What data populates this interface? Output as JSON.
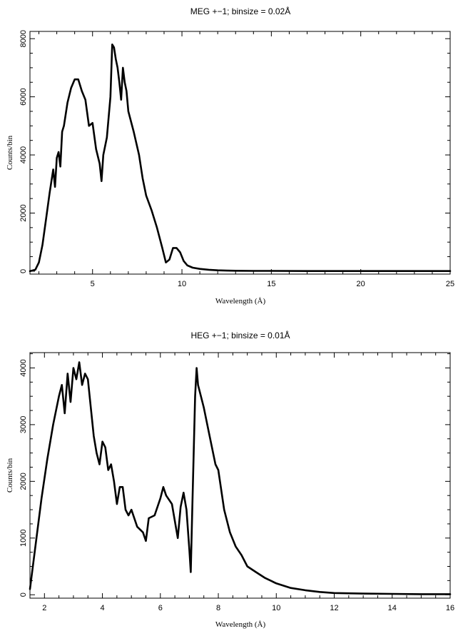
{
  "chart_data": [
    {
      "type": "line",
      "title": "MEG +−1; binsize = 0.02Å",
      "xlabel": "Wavelength (Å)",
      "ylabel": "Counts/bin",
      "xlim": [
        1.5,
        25
      ],
      "ylim": [
        -100,
        8250
      ],
      "x_major_ticks": [
        5,
        10,
        15,
        20,
        25
      ],
      "y_major_ticks": [
        0,
        2000,
        4000,
        6000,
        8000
      ],
      "x_tick_labels": [
        "5",
        "10",
        "15",
        "20",
        "25"
      ],
      "y_tick_labels": [
        "0",
        "2000",
        "4000",
        "6000",
        "8000"
      ],
      "x_minor_step": 1,
      "y_minor_step": 500,
      "grid": false,
      "series": [
        {
          "x": [
            1.5,
            1.8,
            2.0,
            2.2,
            2.4,
            2.6,
            2.8,
            2.9,
            3.0,
            3.1,
            3.2,
            3.3,
            3.4,
            3.6,
            3.8,
            4.0,
            4.2,
            4.4,
            4.6,
            4.8,
            5.0,
            5.2,
            5.4,
            5.5,
            5.6,
            5.8,
            6.0,
            6.1,
            6.2,
            6.3,
            6.4,
            6.5,
            6.6,
            6.7,
            6.8,
            6.9,
            7.0,
            7.3,
            7.6,
            7.8,
            8.0,
            8.3,
            8.6,
            8.9,
            9.1,
            9.3,
            9.5,
            9.7,
            9.9,
            10.1,
            10.3,
            10.6,
            11.0,
            11.5,
            12.0,
            12.5,
            13.0,
            14.0,
            15.0,
            17.0,
            20.0,
            22.0,
            25.0
          ],
          "y": [
            0,
            50,
            300,
            900,
            1800,
            2700,
            3500,
            2900,
            3900,
            4100,
            3600,
            4800,
            5000,
            5800,
            6300,
            6600,
            6600,
            6200,
            5900,
            5000,
            5100,
            4200,
            3700,
            3100,
            4000,
            4600,
            6000,
            7800,
            7700,
            7300,
            7000,
            6500,
            5900,
            7000,
            6500,
            6200,
            5500,
            4800,
            4000,
            3200,
            2600,
            2100,
            1500,
            800,
            300,
            400,
            800,
            800,
            650,
            350,
            200,
            120,
            80,
            50,
            30,
            20,
            15,
            10,
            10,
            5,
            5,
            5,
            5
          ]
        }
      ]
    },
    {
      "type": "line",
      "title": "HEG +−1; binsize = 0.01Å",
      "xlabel": "Wavelength (Å)",
      "ylabel": "Counts/bin",
      "xlim": [
        1.5,
        16
      ],
      "ylim": [
        -60,
        4270
      ],
      "x_major_ticks": [
        2,
        4,
        6,
        8,
        10,
        12,
        14,
        16
      ],
      "y_major_ticks": [
        0,
        1000,
        2000,
        3000,
        4000
      ],
      "x_tick_labels": [
        "2",
        "4",
        "6",
        "8",
        "10",
        "12",
        "14",
        "16"
      ],
      "y_tick_labels": [
        "0",
        "1000",
        "2000",
        "3000",
        "4000"
      ],
      "x_minor_step": 0.5,
      "y_minor_step": 250,
      "grid": false,
      "series": [
        {
          "x": [
            1.5,
            1.7,
            1.9,
            2.1,
            2.3,
            2.5,
            2.6,
            2.7,
            2.8,
            2.9,
            3.0,
            3.1,
            3.2,
            3.3,
            3.4,
            3.5,
            3.6,
            3.7,
            3.8,
            3.9,
            4.0,
            4.1,
            4.2,
            4.3,
            4.4,
            4.5,
            4.6,
            4.7,
            4.8,
            4.9,
            5.0,
            5.2,
            5.4,
            5.5,
            5.6,
            5.8,
            6.0,
            6.1,
            6.2,
            6.4,
            6.6,
            6.7,
            6.8,
            6.9,
            7.0,
            7.05,
            7.1,
            7.2,
            7.25,
            7.3,
            7.5,
            7.7,
            7.9,
            8.0,
            8.2,
            8.4,
            8.6,
            8.8,
            9.0,
            9.3,
            9.6,
            10.0,
            10.5,
            11.0,
            11.5,
            12.0,
            13.0,
            14.0,
            15.0,
            16.0
          ],
          "y": [
            100,
            900,
            1700,
            2400,
            3000,
            3500,
            3700,
            3200,
            3900,
            3400,
            4000,
            3800,
            4100,
            3700,
            3900,
            3800,
            3300,
            2800,
            2500,
            2300,
            2700,
            2600,
            2200,
            2300,
            2000,
            1600,
            1900,
            1900,
            1500,
            1400,
            1500,
            1200,
            1100,
            950,
            1350,
            1400,
            1700,
            1900,
            1750,
            1600,
            1000,
            1550,
            1800,
            1500,
            800,
            400,
            1500,
            3500,
            4000,
            3700,
            3300,
            2800,
            2300,
            2200,
            1500,
            1100,
            850,
            700,
            500,
            400,
            300,
            200,
            120,
            80,
            50,
            30,
            20,
            15,
            10,
            10
          ]
        }
      ]
    }
  ]
}
